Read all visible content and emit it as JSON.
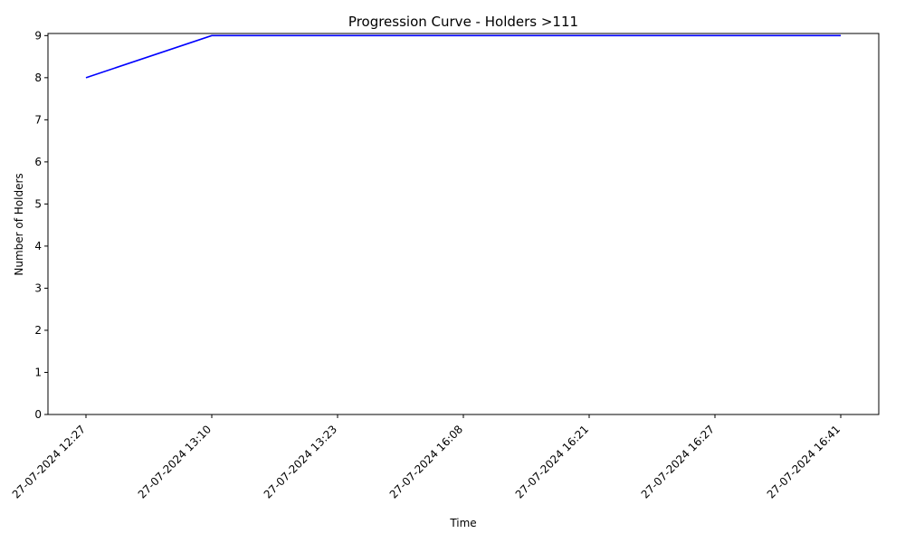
{
  "chart_data": {
    "type": "line",
    "title": "Progression Curve - Holders >111",
    "xlabel": "Time",
    "ylabel": "Number of Holders",
    "categories": [
      "27-07-2024 12:27",
      "27-07-2024 13:10",
      "27-07-2024 13:23",
      "27-07-2024 16:08",
      "27-07-2024 16:21",
      "27-07-2024 16:27",
      "27-07-2024 16:41"
    ],
    "series": [
      {
        "values": [
          8,
          9,
          9,
          9,
          9,
          9,
          9
        ],
        "color": "#0000ff"
      }
    ],
    "ylim": [
      0,
      9.05
    ],
    "yticks": [
      0,
      1,
      2,
      3,
      4,
      5,
      6,
      7,
      8,
      9
    ],
    "grid": false,
    "legend": "none"
  }
}
